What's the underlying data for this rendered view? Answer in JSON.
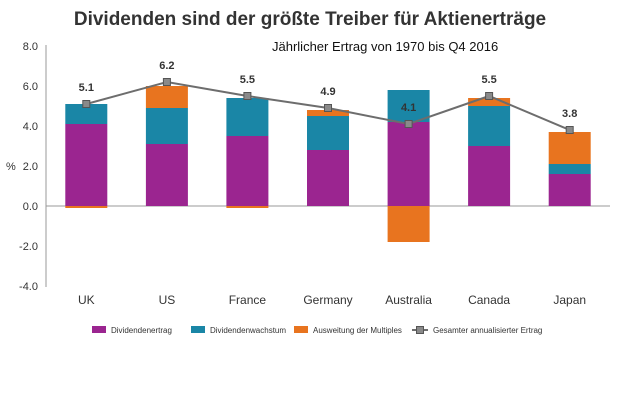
{
  "chart_data": {
    "type": "bar",
    "stacked": true,
    "title": "Dividenden sind der größte Treiber für Aktienerträge",
    "subtitle": "Jährlicher Ertrag von 1970 bis Q4 2016",
    "xlabel": "",
    "ylabel": "%",
    "ylim": [
      -4.0,
      8.0
    ],
    "yticks": [
      "8.0",
      "6.0",
      "4.0",
      "2.0",
      "0.0",
      "-2.0",
      "-4.0"
    ],
    "categories": [
      "UK",
      "US",
      "France",
      "Germany",
      "Australia",
      "Canada",
      "Japan"
    ],
    "series": [
      {
        "name": "Dividendenertrag",
        "color": "#9b2590",
        "values": [
          4.1,
          3.1,
          3.5,
          2.8,
          4.2,
          3.0,
          1.6
        ]
      },
      {
        "name": "Dividendenwachstum",
        "color": "#1a86a6",
        "values": [
          1.0,
          1.8,
          1.9,
          1.7,
          1.6,
          2.0,
          0.5
        ]
      },
      {
        "name": "Ausweitung der Multiples",
        "color": "#e8741f",
        "values": [
          -0.1,
          1.1,
          -0.1,
          0.3,
          -1.8,
          0.4,
          1.6
        ]
      }
    ],
    "line": {
      "name": "Gesamter annualisierter Ertrag",
      "color": "#6d6d6d",
      "values": [
        5.1,
        6.2,
        5.5,
        4.9,
        4.1,
        5.5,
        3.8
      ],
      "labels": [
        "5.1",
        "6.2",
        "5.5",
        "4.9",
        "4.1",
        "5.5",
        "3.8"
      ]
    },
    "grid": false,
    "legend_position": "bottom"
  }
}
